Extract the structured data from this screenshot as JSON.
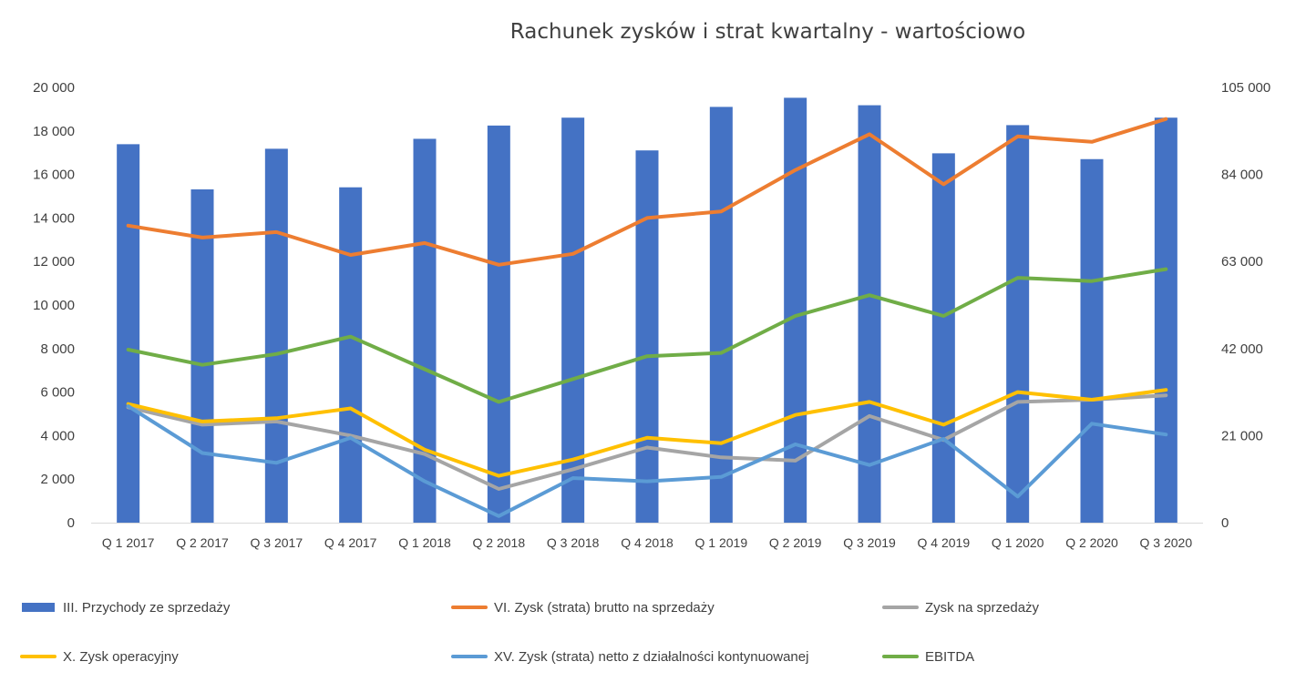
{
  "chart_data": {
    "type": "bar",
    "title": "Rachunek zysków i strat kwartalny - wartościowo",
    "categories": [
      "Q 1 2017",
      "Q 2 2017",
      "Q 3 2017",
      "Q 4 2017",
      "Q 1 2018",
      "Q 2 2018",
      "Q 3 2018",
      "Q 4 2018",
      "Q 1 2019",
      "Q 2 2019",
      "Q 3 2019",
      "Q 4 2019",
      "Q 1 2020",
      "Q 2 2020",
      "Q 3 2020"
    ],
    "y_left": {
      "min": 0,
      "max": 20000,
      "ticks": [
        "0",
        "2 000",
        "4 000",
        "6 000",
        "8 000",
        "10 000",
        "12 000",
        "14 000",
        "16 000",
        "18 000",
        "20 000"
      ]
    },
    "y_right": {
      "min": 0,
      "max": 105000,
      "ticks": [
        "0",
        "21 000",
        "42 000",
        "63 000",
        "84 000",
        "105 000"
      ]
    },
    "grid": false,
    "legend_position": "bottom",
    "series": [
      {
        "name": "III. Przychody ze sprzedaży",
        "type": "bar",
        "axis": "right",
        "color": "#4472C4",
        "values": [
          91300,
          80400,
          90200,
          80900,
          92600,
          95800,
          97700,
          89800,
          100300,
          102500,
          100700,
          89100,
          95900,
          87700,
          97700
        ]
      },
      {
        "name": "VI. Zysk  (strata) brutto na sprzedaży",
        "type": "line",
        "axis": "left",
        "color": "#ED7D31",
        "values": [
          13650,
          13100,
          13350,
          12300,
          12850,
          11850,
          12350,
          14000,
          14300,
          16200,
          17850,
          15550,
          17750,
          17500,
          18550
        ]
      },
      {
        "name": "Zysk na sprzedaży",
        "type": "line",
        "axis": "left",
        "color": "#A5A5A5",
        "values": [
          5300,
          4500,
          4650,
          4000,
          3150,
          1550,
          2450,
          3450,
          3000,
          2850,
          4900,
          3800,
          5550,
          5650,
          5850
        ]
      },
      {
        "name": "X. Zysk operacyjny",
        "type": "line",
        "axis": "left",
        "color": "#FFC000",
        "values": [
          5450,
          4650,
          4800,
          5250,
          3350,
          2150,
          2900,
          3900,
          3650,
          4950,
          5550,
          4500,
          6000,
          5650,
          6100
        ]
      },
      {
        "name": "XV. Zysk (strata) netto z działalności kontynuowanej",
        "type": "line",
        "axis": "left",
        "color": "#5B9BD5",
        "values": [
          5350,
          3200,
          2750,
          3900,
          1900,
          300,
          2050,
          1900,
          2100,
          3600,
          2650,
          3850,
          1200,
          4550,
          4050
        ]
      },
      {
        "name": "EBITDA",
        "type": "line",
        "axis": "left",
        "color": "#70AD47",
        "values": [
          7950,
          7250,
          7750,
          8550,
          7050,
          5550,
          6600,
          7650,
          7800,
          9500,
          10450,
          9500,
          11250,
          11100,
          11650
        ]
      }
    ]
  }
}
